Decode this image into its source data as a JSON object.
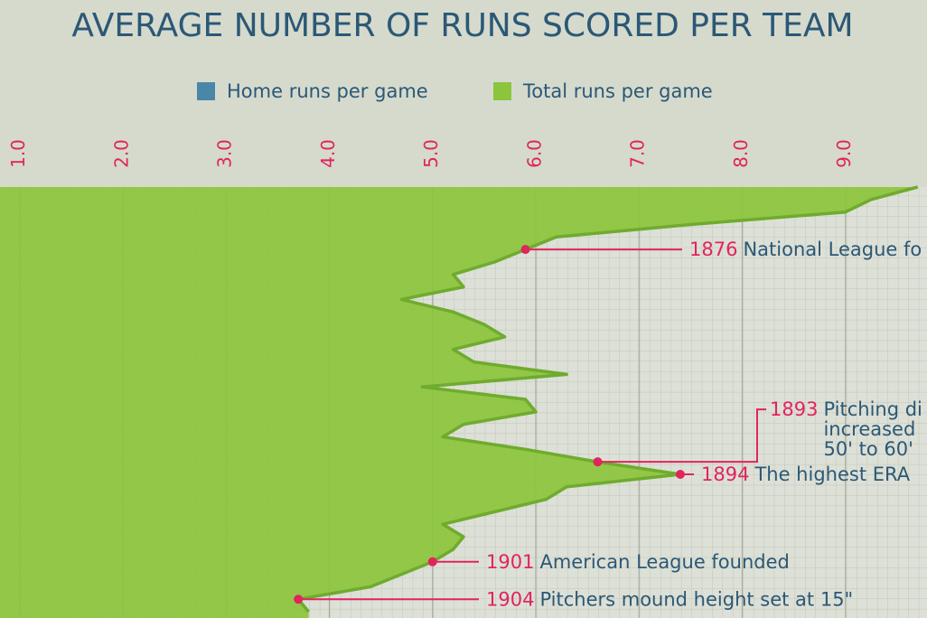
{
  "chart_data": {
    "type": "area",
    "title": "AVERAGE NUMBER OF RUNS SCORED PER TEAM",
    "legend": [
      {
        "name": "Home runs per game",
        "color": "#4a86a8"
      },
      {
        "name": "Total runs per game",
        "color": "#8cc43c"
      }
    ],
    "years": [
      1871,
      1872,
      1873,
      1874,
      1875,
      1876,
      1877,
      1878,
      1879,
      1880,
      1881,
      1882,
      1883,
      1884,
      1885,
      1886,
      1887,
      1888,
      1889,
      1890,
      1891,
      1892,
      1893,
      1894,
      1895,
      1896,
      1897,
      1898,
      1899,
      1900,
      1901,
      1902,
      1903,
      1904,
      1905
    ],
    "series": [
      {
        "color": "#8cc43c",
        "line_color": "#6fab2e",
        "values": [
          9.7,
          9.25,
          9.0,
          7.5,
          6.2,
          5.9,
          5.6,
          5.2,
          5.3,
          4.7,
          5.2,
          5.5,
          5.7,
          5.2,
          5.4,
          6.3,
          4.9,
          5.9,
          6.0,
          5.3,
          5.1,
          5.9,
          6.6,
          7.4,
          6.3,
          6.1,
          5.6,
          5.1,
          5.3,
          5.2,
          5.0,
          4.7,
          4.4,
          3.7,
          3.8
        ]
      }
    ],
    "xlim": [
      0.81,
      9.79
    ],
    "xticks": [
      {
        "value": 1,
        "label": "1.0"
      },
      {
        "value": 2,
        "label": "2.0"
      },
      {
        "value": 3,
        "label": "3.0"
      },
      {
        "value": 4,
        "label": "4.0"
      },
      {
        "value": 5,
        "label": "5.0"
      },
      {
        "value": 6,
        "label": "6.0"
      },
      {
        "value": 7,
        "label": "7.0"
      },
      {
        "value": 8,
        "label": "8.0"
      },
      {
        "value": 9,
        "label": "9.0"
      }
    ],
    "ylim": [
      1871,
      1905.5
    ],
    "grid": true,
    "annotations": [
      {
        "year": "1876",
        "index": 5,
        "lines": [
          "National League fo"
        ]
      },
      {
        "year": "1893",
        "index": 22,
        "lines": [
          "Pitching di",
          "increased",
          "50' to 60'"
        ]
      },
      {
        "year": "1894",
        "index": 23,
        "lines": [
          "The highest ERA"
        ]
      },
      {
        "year": "1901",
        "index": 30,
        "lines": [
          "American League founded"
        ]
      },
      {
        "year": "1904",
        "index": 33,
        "lines": [
          "Pitchers mound height set at 15\""
        ]
      }
    ]
  }
}
